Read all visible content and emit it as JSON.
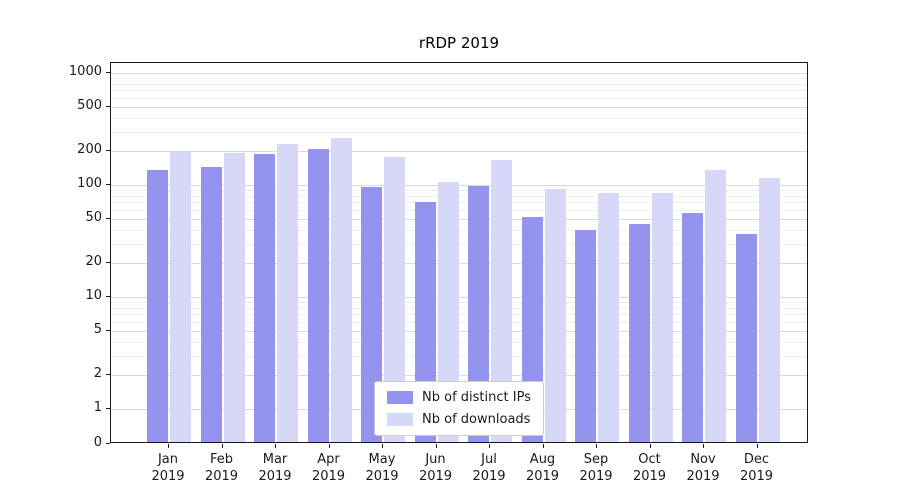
{
  "colors": {
    "ips": "#9494ee",
    "downloads": "#d7d7f8",
    "grid_major": "#d9d9d9",
    "grid_minor": "#eeeeee"
  },
  "chart_data": {
    "type": "bar",
    "title": "rRDP 2019",
    "categories": [
      "Jan 2019",
      "Feb 2019",
      "Mar 2019",
      "Apr 2019",
      "May 2019",
      "Jun 2019",
      "Jul 2019",
      "Aug 2019",
      "Sep 2019",
      "Oct 2019",
      "Nov 2019",
      "Dec 2019"
    ],
    "series": [
      {
        "name": "Nb of distinct IPs",
        "values": [
          130,
          140,
          180,
          200,
          92,
          68,
          95,
          50,
          38,
          43,
          54,
          35
        ]
      },
      {
        "name": "Nb of downloads",
        "values": [
          190,
          185,
          225,
          250,
          172,
          103,
          162,
          88,
          82,
          82,
          132,
          110
        ]
      }
    ],
    "xlabel": "",
    "ylabel": "",
    "yscale": "symlog",
    "yticks": [
      0,
      1,
      2,
      5,
      10,
      20,
      50,
      100,
      200,
      500,
      1000
    ],
    "ylim": [
      0,
      1200
    ],
    "grid": true,
    "legend_position": "lower center"
  }
}
